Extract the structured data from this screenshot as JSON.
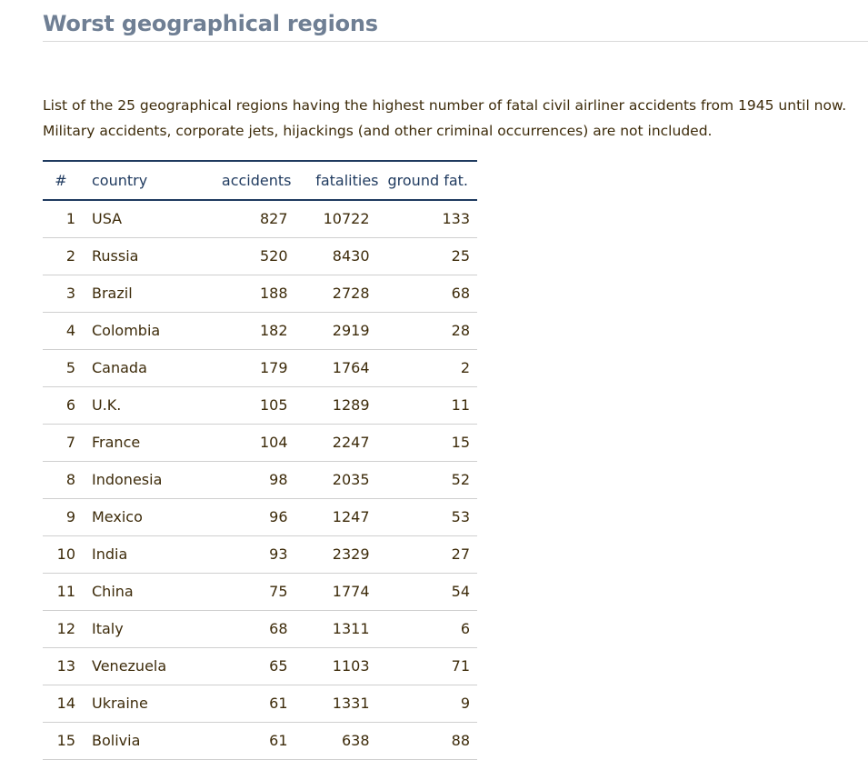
{
  "page": {
    "title": "Worst geographical regions",
    "intro": "List of the 25 geographical regions having the highest number of fatal civil airliner accidents from 1945 until now. Military accidents, corporate jets, hijackings (and other criminal occurrences) are not included."
  },
  "table": {
    "headers": {
      "rank": "#",
      "country": "country",
      "accidents": "accidents",
      "fatalities": "fatalities",
      "ground": "ground fat."
    },
    "rows": [
      {
        "rank": "1",
        "country": "USA",
        "accidents": "827",
        "fatalities": "10722",
        "ground": "133"
      },
      {
        "rank": "2",
        "country": "Russia",
        "accidents": "520",
        "fatalities": "8430",
        "ground": "25"
      },
      {
        "rank": "3",
        "country": "Brazil",
        "accidents": "188",
        "fatalities": "2728",
        "ground": "68"
      },
      {
        "rank": "4",
        "country": "Colombia",
        "accidents": "182",
        "fatalities": "2919",
        "ground": "28"
      },
      {
        "rank": "5",
        "country": "Canada",
        "accidents": "179",
        "fatalities": "1764",
        "ground": "2"
      },
      {
        "rank": "6",
        "country": "U.K.",
        "accidents": "105",
        "fatalities": "1289",
        "ground": "11"
      },
      {
        "rank": "7",
        "country": "France",
        "accidents": "104",
        "fatalities": "2247",
        "ground": "15"
      },
      {
        "rank": "8",
        "country": "Indonesia",
        "accidents": "98",
        "fatalities": "2035",
        "ground": "52"
      },
      {
        "rank": "9",
        "country": "Mexico",
        "accidents": "96",
        "fatalities": "1247",
        "ground": "53"
      },
      {
        "rank": "10",
        "country": "India",
        "accidents": "93",
        "fatalities": "2329",
        "ground": "27"
      },
      {
        "rank": "11",
        "country": "China",
        "accidents": "75",
        "fatalities": "1774",
        "ground": "54"
      },
      {
        "rank": "12",
        "country": "Italy",
        "accidents": "68",
        "fatalities": "1311",
        "ground": "6"
      },
      {
        "rank": "13",
        "country": "Venezuela",
        "accidents": "65",
        "fatalities": "1103",
        "ground": "71"
      },
      {
        "rank": "14",
        "country": "Ukraine",
        "accidents": "61",
        "fatalities": "1331",
        "ground": "9"
      },
      {
        "rank": "15",
        "country": "Bolivia",
        "accidents": "61",
        "fatalities": "638",
        "ground": "88"
      }
    ]
  }
}
